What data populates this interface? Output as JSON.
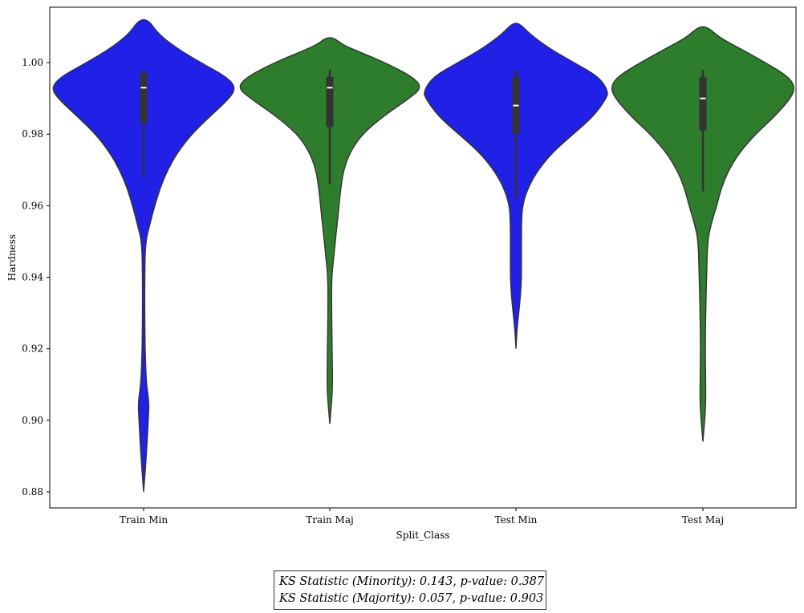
{
  "chart_data": {
    "type": "violin",
    "xlabel": "Split_Class",
    "ylabel": "Hardness",
    "ylim": [
      0.8755,
      1.0155
    ],
    "yticks": [
      0.88,
      0.9,
      0.92,
      0.94,
      0.96,
      0.98,
      1.0
    ],
    "ytick_labels": [
      "0.88",
      "0.90",
      "0.92",
      "0.94",
      "0.96",
      "0.98",
      "1.00"
    ],
    "categories": [
      "Train Min",
      "Train Maj",
      "Test Min",
      "Test Maj"
    ],
    "colors": {
      "Train Min": "#2020e6",
      "Train Maj": "#2d7d2d",
      "Test Min": "#2020e6",
      "Test Maj": "#2d7d2d"
    },
    "series": [
      {
        "category": "Train Min",
        "min": 0.88,
        "max": 1.012,
        "median": 0.993,
        "q1": 0.983,
        "q3": 0.997,
        "whisker_low": 0.968,
        "whisker_high": 0.998,
        "density": [
          [
            0.88,
            0.0
          ],
          [
            0.89,
            0.03
          ],
          [
            0.9,
            0.05
          ],
          [
            0.905,
            0.06
          ],
          [
            0.91,
            0.03
          ],
          [
            0.92,
            0.015
          ],
          [
            0.93,
            0.012
          ],
          [
            0.94,
            0.012
          ],
          [
            0.95,
            0.02
          ],
          [
            0.955,
            0.07
          ],
          [
            0.96,
            0.12
          ],
          [
            0.965,
            0.18
          ],
          [
            0.97,
            0.26
          ],
          [
            0.975,
            0.37
          ],
          [
            0.98,
            0.52
          ],
          [
            0.985,
            0.72
          ],
          [
            0.99,
            0.93
          ],
          [
            0.993,
            1.0
          ],
          [
            0.996,
            0.9
          ],
          [
            1.0,
            0.62
          ],
          [
            1.004,
            0.36
          ],
          [
            1.008,
            0.16
          ],
          [
            1.012,
            0.05
          ]
        ]
      },
      {
        "category": "Train Maj",
        "min": 0.899,
        "max": 1.007,
        "median": 0.993,
        "q1": 0.982,
        "q3": 0.996,
        "whisker_low": 0.966,
        "whisker_high": 0.998,
        "density": [
          [
            0.899,
            0.0
          ],
          [
            0.905,
            0.02
          ],
          [
            0.91,
            0.03
          ],
          [
            0.92,
            0.025
          ],
          [
            0.93,
            0.02
          ],
          [
            0.94,
            0.02
          ],
          [
            0.945,
            0.04
          ],
          [
            0.95,
            0.06
          ],
          [
            0.955,
            0.08
          ],
          [
            0.96,
            0.1
          ],
          [
            0.965,
            0.12
          ],
          [
            0.97,
            0.15
          ],
          [
            0.975,
            0.22
          ],
          [
            0.98,
            0.35
          ],
          [
            0.985,
            0.58
          ],
          [
            0.99,
            0.86
          ],
          [
            0.993,
            1.0
          ],
          [
            0.996,
            0.9
          ],
          [
            1.0,
            0.6
          ],
          [
            1.003,
            0.32
          ],
          [
            1.005,
            0.14
          ],
          [
            1.007,
            0.04
          ]
        ]
      },
      {
        "category": "Test Min",
        "min": 0.92,
        "max": 1.011,
        "median": 0.988,
        "q1": 0.98,
        "q3": 0.996,
        "whisker_low": 0.962,
        "whisker_high": 0.998,
        "density": [
          [
            0.92,
            0.0
          ],
          [
            0.925,
            0.01
          ],
          [
            0.93,
            0.03
          ],
          [
            0.935,
            0.05
          ],
          [
            0.94,
            0.06
          ],
          [
            0.945,
            0.06
          ],
          [
            0.95,
            0.06
          ],
          [
            0.955,
            0.06
          ],
          [
            0.96,
            0.07
          ],
          [
            0.965,
            0.13
          ],
          [
            0.97,
            0.24
          ],
          [
            0.975,
            0.4
          ],
          [
            0.98,
            0.62
          ],
          [
            0.985,
            0.84
          ],
          [
            0.99,
            0.98
          ],
          [
            0.992,
            1.0
          ],
          [
            0.996,
            0.9
          ],
          [
            1.0,
            0.63
          ],
          [
            1.004,
            0.36
          ],
          [
            1.008,
            0.15
          ],
          [
            1.011,
            0.04
          ]
        ]
      },
      {
        "category": "Test Maj",
        "min": 0.894,
        "max": 1.01,
        "median": 0.99,
        "q1": 0.981,
        "q3": 0.996,
        "whisker_low": 0.964,
        "whisker_high": 0.998,
        "density": [
          [
            0.894,
            0.0
          ],
          [
            0.9,
            0.02
          ],
          [
            0.905,
            0.03
          ],
          [
            0.91,
            0.03
          ],
          [
            0.92,
            0.025
          ],
          [
            0.93,
            0.03
          ],
          [
            0.94,
            0.04
          ],
          [
            0.95,
            0.05
          ],
          [
            0.955,
            0.09
          ],
          [
            0.96,
            0.15
          ],
          [
            0.965,
            0.2
          ],
          [
            0.97,
            0.28
          ],
          [
            0.975,
            0.4
          ],
          [
            0.98,
            0.57
          ],
          [
            0.985,
            0.78
          ],
          [
            0.99,
            0.95
          ],
          [
            0.993,
            1.0
          ],
          [
            0.996,
            0.93
          ],
          [
            1.0,
            0.68
          ],
          [
            1.004,
            0.4
          ],
          [
            1.007,
            0.18
          ],
          [
            1.01,
            0.05
          ]
        ]
      }
    ],
    "grid": false,
    "legend": "none"
  },
  "annotation": {
    "line1": "KS Statistic (Minority): 0.143, p-value: 0.387",
    "line2": "KS Statistic (Majority): 0.057, p-value: 0.903"
  }
}
